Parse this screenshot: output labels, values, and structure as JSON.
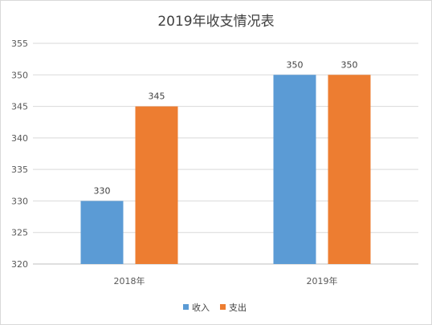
{
  "chart_data": {
    "type": "bar",
    "title": "2019年收支情况表",
    "categories": [
      "2018年",
      "2019年"
    ],
    "series": [
      {
        "name": "收入",
        "values": [
          330,
          350
        ],
        "color": "#5b9bd5"
      },
      {
        "name": "支出",
        "values": [
          345,
          350
        ],
        "color": "#ed7d31"
      }
    ],
    "ylim": [
      320,
      355
    ],
    "yticks": [
      320,
      325,
      330,
      335,
      340,
      345,
      350,
      355
    ],
    "grid": true,
    "data_labels": true,
    "legend_position": "bottom"
  }
}
